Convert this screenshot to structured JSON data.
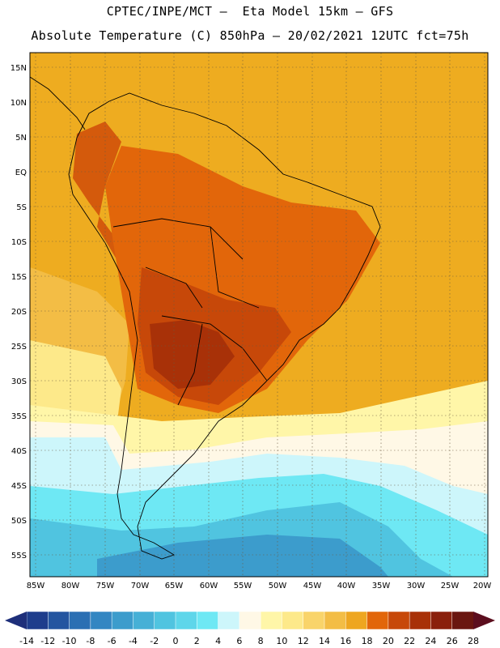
{
  "header": {
    "line1": "CPTEC/INPE/MCT –  Eta Model 15km – GFS",
    "line2": "Absolute Temperature (C) 850hPa – 20/02/2021 12UTC fct=75h"
  },
  "lat_labels": [
    "15N",
    "10N",
    "5N",
    "EQ",
    "5S",
    "10S",
    "15S",
    "20S",
    "25S",
    "30S",
    "35S",
    "40S",
    "45S",
    "50S",
    "55S"
  ],
  "lon_labels": [
    "85W",
    "80W",
    "75W",
    "70W",
    "65W",
    "60W",
    "55W",
    "50W",
    "45W",
    "40W",
    "35W",
    "30W",
    "25W",
    "20W"
  ],
  "colorbar": {
    "labels": [
      "-14",
      "-12",
      "-10",
      "-8",
      "-6",
      "-4",
      "-2",
      "0",
      "2",
      "4",
      "6",
      "8",
      "10",
      "12",
      "14",
      "16",
      "18",
      "20",
      "22",
      "24",
      "26",
      "28"
    ],
    "colors": [
      "#1e3d8c",
      "#2455a0",
      "#2b6fb3",
      "#3386c2",
      "#3c9ccc",
      "#46b0d6",
      "#50c4e0",
      "#5ed6ea",
      "#6ee8f4",
      "#cdf6fb",
      "#fff8e6",
      "#fff6a8",
      "#fde98a",
      "#f9d46a",
      "#f3bd45",
      "#eea620",
      "#e2660a",
      "#c74809",
      "#a83108",
      "#8a200c",
      "#6a1610"
    ],
    "left_end_color": "#1e2f7a",
    "right_end_color": "#5c0e1e"
  },
  "map": {
    "background_color": "#eeac20",
    "zones": [
      {
        "name": "warm-core-south-america",
        "color": "#e2660a"
      },
      {
        "name": "hot-core-paraguay-argentina",
        "color": "#c74809"
      },
      {
        "name": "hottest-core",
        "color": "#a83108"
      },
      {
        "name": "andes-warm-band",
        "color": "#d45a0c"
      },
      {
        "name": "pacific-mild-band",
        "color": "#f3bd45"
      },
      {
        "name": "south-pacific-yellow",
        "color": "#fde98a"
      },
      {
        "name": "south-pale-band",
        "color": "#fff6a8"
      },
      {
        "name": "cool-pale",
        "color": "#fff8e6"
      },
      {
        "name": "cold-light-cyan",
        "color": "#cdf6fb"
      },
      {
        "name": "cold-cyan",
        "color": "#6ee8f4"
      },
      {
        "name": "colder-blue",
        "color": "#50c4e0"
      },
      {
        "name": "coldest-blue",
        "color": "#3c9ccc"
      }
    ]
  }
}
